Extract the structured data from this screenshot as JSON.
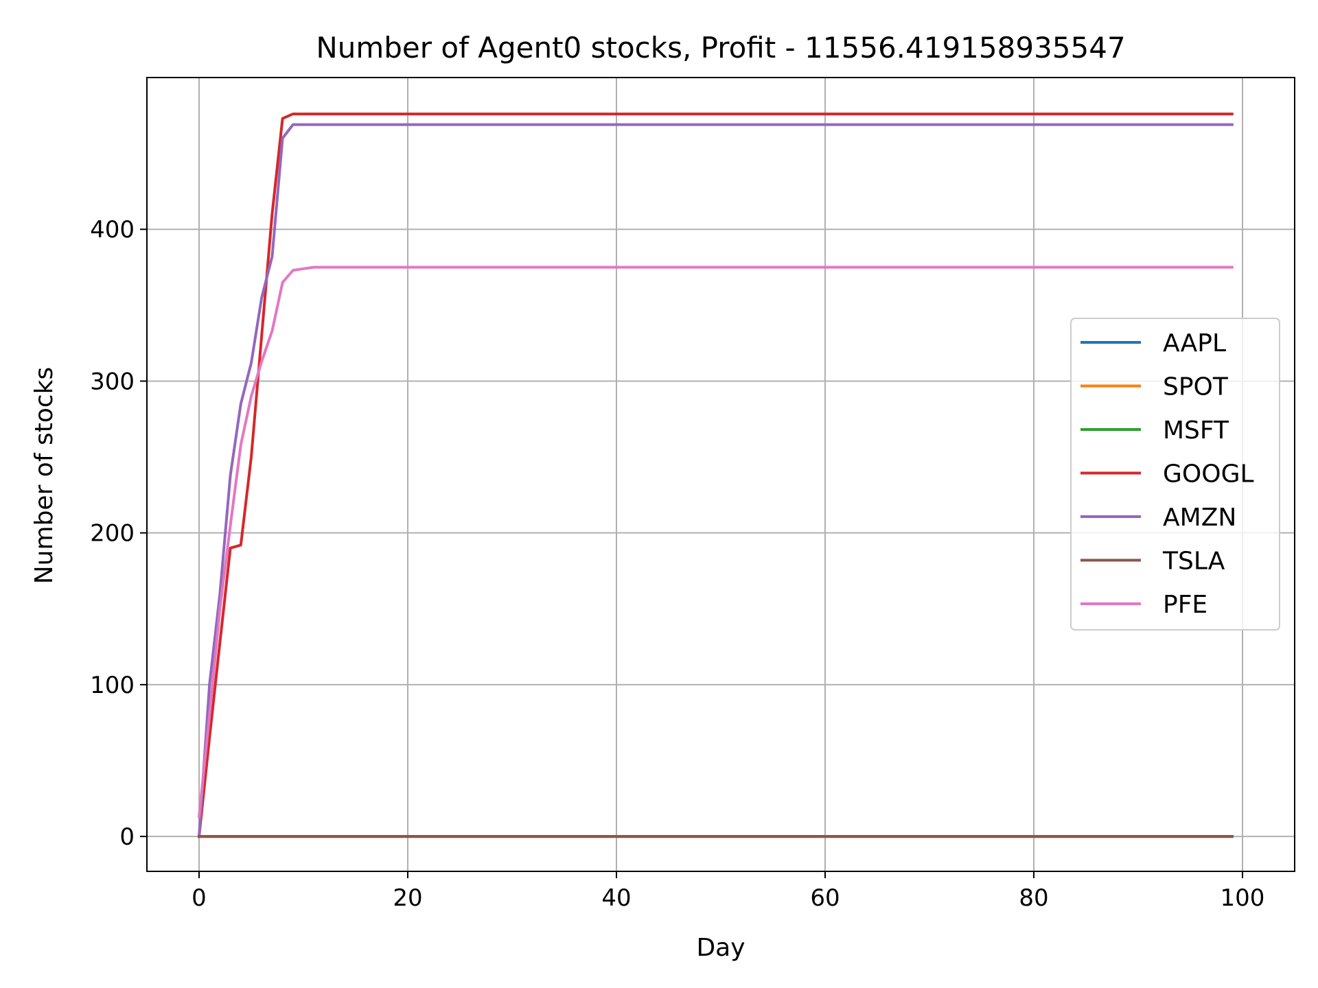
{
  "chart_data": {
    "type": "line",
    "title": "Number of Agent0 stocks, Profit - 11556.419158935547",
    "xlabel": "Day",
    "ylabel": "Number of stocks",
    "xlim": [
      -5,
      105
    ],
    "ylim": [
      -23,
      500
    ],
    "xticks": [
      0,
      20,
      40,
      60,
      80,
      100
    ],
    "yticks": [
      0,
      100,
      200,
      300,
      400
    ],
    "grid": true,
    "legend_position": "center-right",
    "series": [
      {
        "name": "AAPL",
        "color": "#1f77b4",
        "points": [
          [
            0,
            0
          ],
          [
            99,
            0
          ]
        ]
      },
      {
        "name": "SPOT",
        "color": "#ff7f0e",
        "points": [
          [
            0,
            0
          ],
          [
            99,
            0
          ]
        ]
      },
      {
        "name": "MSFT",
        "color": "#2ca02c",
        "points": [
          [
            0,
            0
          ],
          [
            99,
            0
          ]
        ]
      },
      {
        "name": "GOOGL",
        "color": "#d62728",
        "points": [
          [
            0,
            0
          ],
          [
            1,
            65
          ],
          [
            2,
            128
          ],
          [
            3,
            190
          ],
          [
            4,
            192
          ],
          [
            5,
            250
          ],
          [
            6,
            330
          ],
          [
            7,
            410
          ],
          [
            8,
            473
          ],
          [
            9,
            476
          ],
          [
            10,
            476
          ],
          [
            99,
            476
          ]
        ]
      },
      {
        "name": "AMZN",
        "color": "#9467bd",
        "points": [
          [
            0,
            0
          ],
          [
            1,
            100
          ],
          [
            2,
            160
          ],
          [
            3,
            238
          ],
          [
            4,
            285
          ],
          [
            5,
            312
          ],
          [
            6,
            355
          ],
          [
            7,
            382
          ],
          [
            8,
            460
          ],
          [
            9,
            469
          ],
          [
            10,
            469
          ],
          [
            99,
            469
          ]
        ]
      },
      {
        "name": "TSLA",
        "color": "#8c564b",
        "points": [
          [
            0,
            0
          ],
          [
            99,
            0
          ]
        ]
      },
      {
        "name": "PFE",
        "color": "#e377c2",
        "points": [
          [
            0,
            13
          ],
          [
            1,
            80
          ],
          [
            2,
            150
          ],
          [
            3,
            205
          ],
          [
            4,
            258
          ],
          [
            5,
            290
          ],
          [
            6,
            313
          ],
          [
            7,
            333
          ],
          [
            8,
            365
          ],
          [
            9,
            373
          ],
          [
            10,
            374
          ],
          [
            11,
            375
          ],
          [
            99,
            375
          ]
        ]
      }
    ]
  }
}
